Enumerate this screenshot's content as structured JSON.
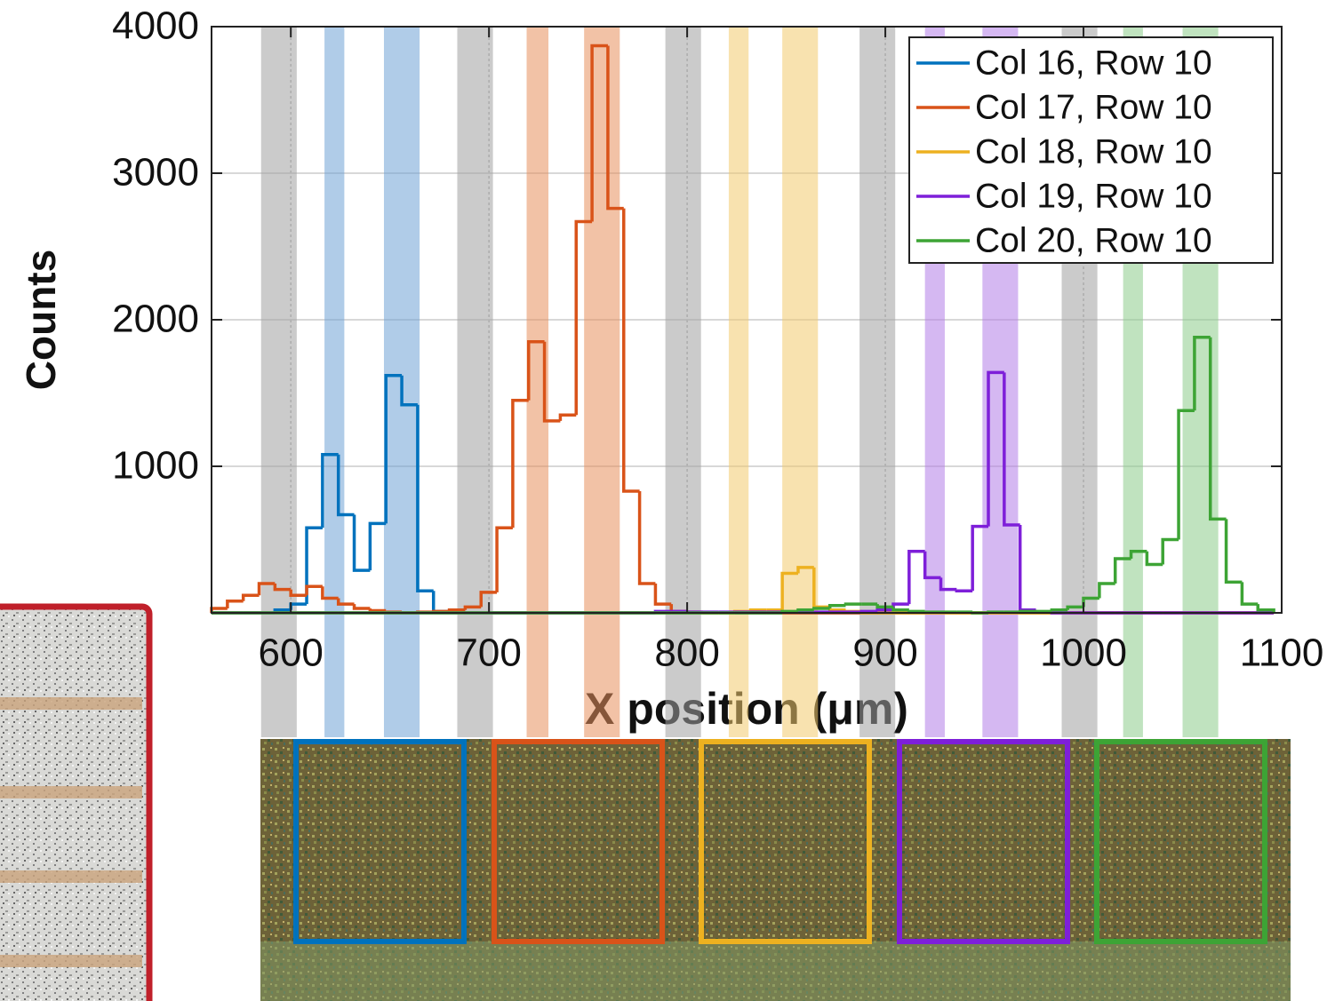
{
  "chart_data": {
    "type": "histogram",
    "xlabel": "X  position  (μm)",
    "ylabel": "Counts",
    "xlim": [
      560,
      1100
    ],
    "ylim": [
      0,
      4000
    ],
    "xticks": [
      600,
      700,
      800,
      900,
      1000,
      1100
    ],
    "yticks": [
      1000,
      2000,
      3000,
      4000
    ],
    "grid": true,
    "legend": "upper right",
    "bins": [
      560,
      568,
      576,
      584,
      592,
      600,
      608,
      616,
      624,
      632,
      640,
      648,
      656,
      664,
      672,
      680,
      688,
      696,
      704,
      712,
      720,
      728,
      736,
      744,
      752,
      760,
      768,
      776,
      784,
      792,
      800,
      808,
      816,
      824,
      832,
      840,
      848,
      856,
      864,
      872,
      880,
      888,
      896,
      904,
      912,
      920,
      928,
      936,
      944,
      952,
      960,
      968,
      976,
      984,
      992,
      1000,
      1008,
      1016,
      1024,
      1032,
      1040,
      1048,
      1056,
      1064,
      1072,
      1080,
      1088,
      1096
    ],
    "series": [
      {
        "name": "Col 16, Row 10",
        "color": "#0072BD",
        "values": [
          0,
          0,
          0,
          0,
          20,
          60,
          580,
          1080,
          670,
          290,
          610,
          1620,
          1420,
          150,
          10,
          5,
          0,
          0,
          0,
          0,
          0,
          0,
          0,
          0,
          0,
          0,
          0,
          0,
          0,
          0,
          0,
          0,
          0,
          0,
          0,
          0,
          0,
          0,
          0,
          0,
          0,
          0,
          0,
          0,
          0,
          0,
          0,
          0,
          0,
          0,
          0,
          0,
          0,
          0,
          0,
          0,
          0,
          0,
          0,
          0,
          0,
          0,
          0,
          0,
          0,
          0,
          0
        ]
      },
      {
        "name": "Col 17, Row 10",
        "color": "#D95319",
        "values": [
          30,
          80,
          120,
          200,
          160,
          120,
          180,
          100,
          60,
          30,
          15,
          5,
          0,
          5,
          10,
          20,
          40,
          140,
          580,
          1450,
          1850,
          1310,
          1350,
          2670,
          3870,
          2760,
          830,
          200,
          60,
          10,
          5,
          0,
          0,
          0,
          0,
          0,
          0,
          0,
          0,
          0,
          0,
          0,
          0,
          0,
          0,
          0,
          0,
          0,
          0,
          0,
          0,
          0,
          0,
          0,
          0,
          0,
          0,
          0,
          0,
          0,
          0,
          0,
          0,
          0,
          0,
          0,
          0
        ]
      },
      {
        "name": "Col 18, Row 10",
        "color": "#EDB120",
        "values": [
          0,
          0,
          0,
          0,
          0,
          0,
          0,
          0,
          0,
          0,
          0,
          0,
          0,
          0,
          0,
          0,
          0,
          0,
          0,
          0,
          0,
          0,
          0,
          0,
          0,
          0,
          0,
          0,
          0,
          0,
          0,
          0,
          0,
          10,
          20,
          20,
          270,
          310,
          40,
          20,
          10,
          0,
          0,
          0,
          0,
          0,
          0,
          0,
          0,
          0,
          0,
          0,
          0,
          0,
          0,
          0,
          0,
          0,
          0,
          0,
          0,
          0,
          0,
          0,
          0,
          0,
          0
        ]
      },
      {
        "name": "Col 19, Row 10",
        "color": "#7E1FD9",
        "values": [
          0,
          0,
          0,
          0,
          0,
          0,
          0,
          0,
          0,
          0,
          0,
          0,
          0,
          0,
          0,
          0,
          0,
          0,
          0,
          0,
          0,
          0,
          0,
          0,
          0,
          0,
          0,
          0,
          10,
          10,
          5,
          5,
          5,
          5,
          5,
          5,
          5,
          5,
          5,
          5,
          5,
          10,
          20,
          60,
          420,
          240,
          160,
          150,
          590,
          1640,
          600,
          20,
          5,
          0,
          0,
          0,
          0,
          0,
          0,
          0,
          0,
          0,
          0,
          0,
          0,
          0,
          0
        ]
      },
      {
        "name": "Col 20, Row 10",
        "color": "#3DA435",
        "values": [
          0,
          0,
          0,
          0,
          0,
          0,
          0,
          0,
          0,
          0,
          0,
          0,
          0,
          0,
          0,
          0,
          0,
          0,
          0,
          0,
          0,
          0,
          0,
          0,
          0,
          0,
          0,
          0,
          0,
          0,
          0,
          0,
          0,
          0,
          0,
          0,
          10,
          20,
          30,
          50,
          60,
          60,
          40,
          20,
          10,
          5,
          5,
          5,
          0,
          5,
          5,
          10,
          10,
          20,
          40,
          100,
          200,
          370,
          420,
          330,
          500,
          1380,
          1880,
          640,
          210,
          60,
          20
        ]
      }
    ],
    "bands": [
      {
        "range": [
          585,
          603
        ],
        "color": "#a0a0a0"
      },
      {
        "range": [
          617,
          627
        ],
        "color": "#6fa3d6"
      },
      {
        "range": [
          647,
          665
        ],
        "color": "#6fa3d6"
      },
      {
        "range": [
          684,
          702
        ],
        "color": "#a0a0a0"
      },
      {
        "range": [
          719,
          730
        ],
        "color": "#e8905c"
      },
      {
        "range": [
          748,
          766
        ],
        "color": "#e8905c"
      },
      {
        "range": [
          789,
          807
        ],
        "color": "#a0a0a0"
      },
      {
        "range": [
          821,
          831
        ],
        "color": "#f2cb6e"
      },
      {
        "range": [
          848,
          866
        ],
        "color": "#f2cb6e"
      },
      {
        "range": [
          887,
          905
        ],
        "color": "#a0a0a0"
      },
      {
        "range": [
          920,
          930
        ],
        "color": "#b37ee8"
      },
      {
        "range": [
          949,
          967
        ],
        "color": "#b37ee8"
      },
      {
        "range": [
          989,
          1007
        ],
        "color": "#a0a0a0"
      },
      {
        "range": [
          1020,
          1030
        ],
        "color": "#8ccc8a"
      },
      {
        "range": [
          1050,
          1068
        ],
        "color": "#8ccc8a"
      }
    ]
  }
}
